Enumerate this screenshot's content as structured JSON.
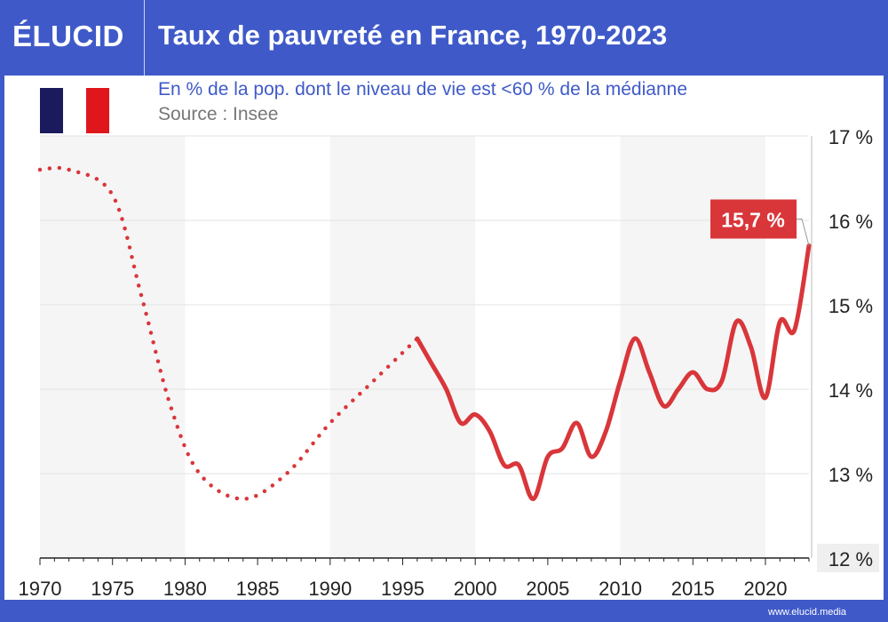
{
  "header": {
    "logo": "ÉLUCID",
    "title": "Taux de pauvreté en France, 1970-2023"
  },
  "subtitle": "En % de la pop. dont le niveau de vie est <60 % de la médianne",
  "source": "Source : Insee",
  "flag_colors": [
    "#1a1a5c",
    "#ffffff",
    "#e0161d"
  ],
  "footer": "www.elucid.media",
  "chart_data": {
    "type": "line",
    "title": "Taux de pauvreté en France, 1970-2023",
    "xlim": [
      1970,
      2023
    ],
    "ylim": [
      12,
      17
    ],
    "x_ticks": [
      "1970",
      "1975",
      "1980",
      "1985",
      "1990",
      "1995",
      "2000",
      "2005",
      "2010",
      "2015",
      "2020"
    ],
    "y_ticks": [
      "12 %",
      "13 %",
      "14 %",
      "15 %",
      "16 %",
      "17 %"
    ],
    "grid": true,
    "color": "#d9363a",
    "series": [
      {
        "style": "dotted",
        "x": [
          1970,
          1972,
          1975,
          1977,
          1979,
          1981,
          1984,
          1987,
          1990,
          1993,
          1996
        ],
        "y": [
          16.6,
          16.6,
          16.3,
          15.1,
          13.8,
          13.0,
          12.7,
          13.0,
          13.6,
          14.1,
          14.6
        ]
      },
      {
        "style": "solid",
        "x": [
          1996,
          1997,
          1998,
          1999,
          2000,
          2001,
          2002,
          2003,
          2004,
          2005,
          2006,
          2007,
          2008,
          2009,
          2010,
          2011,
          2012,
          2013,
          2014,
          2015,
          2016,
          2017,
          2018,
          2019,
          2020,
          2021,
          2022,
          2023
        ],
        "y": [
          14.6,
          14.3,
          14.0,
          13.6,
          13.7,
          13.5,
          13.1,
          13.1,
          12.7,
          13.2,
          13.3,
          13.6,
          13.2,
          13.5,
          14.1,
          14.6,
          14.2,
          13.8,
          14.0,
          14.2,
          14.0,
          14.1,
          14.8,
          14.5,
          13.9,
          14.8,
          14.7,
          15.7
        ]
      }
    ],
    "annotation": {
      "x": 2023,
      "y": 15.7,
      "label": "15,7 %"
    }
  }
}
